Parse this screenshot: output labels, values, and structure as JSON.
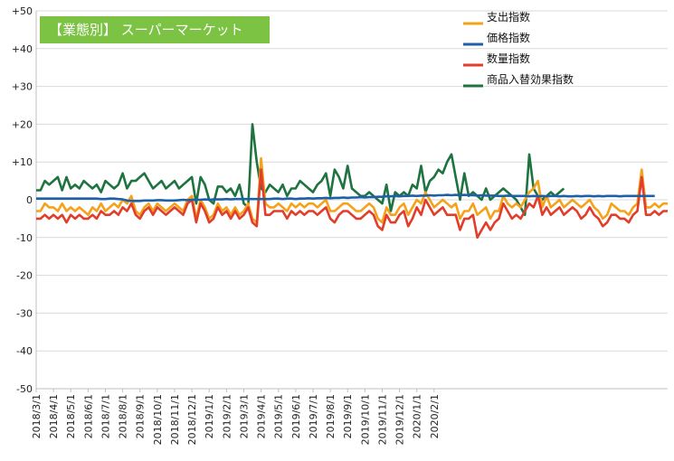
{
  "chart_data": {
    "type": "line",
    "title": "【業態別】 スーパーマーケット",
    "ylim": [
      -50,
      50
    ],
    "y_ticks": [
      "+50",
      "+40",
      "+30",
      "+20",
      "+10",
      "0",
      "-10",
      "-20",
      "-30",
      "-40",
      "-50"
    ],
    "x_tick_labels": [
      "2018/3/1",
      "2018/4/1",
      "2018/5/1",
      "2018/6/1",
      "2018/7/1",
      "2018/8/1",
      "2018/9/1",
      "2018/10/1",
      "2018/11/1",
      "2018/12/1",
      "2019/1/1",
      "2019/2/1",
      "2019/3/1",
      "2019/4/1",
      "2019/5/1",
      "2019/6/1",
      "2019/7/1",
      "2019/8/1",
      "2019/9/1",
      "2019/10/1",
      "2019/11/1",
      "2019/12/1",
      "2020/1/1",
      "2020/2/1"
    ],
    "points_per_month": 4,
    "legend_position": "top-right",
    "series": [
      {
        "name": "支出指数",
        "color": "#F5A21B",
        "values": [
          -3,
          -3,
          -1,
          -2,
          -2,
          -3,
          -1,
          -3,
          -2,
          -3,
          -2,
          -3,
          -4,
          -2,
          -3,
          -1,
          -3,
          -2,
          -1,
          -2,
          0,
          -1,
          1,
          -3,
          -4,
          -2,
          -1,
          -3,
          -1,
          -2,
          -3,
          -2,
          -1,
          -2,
          -3,
          0,
          1,
          -5,
          0,
          -2,
          -5,
          -4,
          -1,
          -3,
          -2,
          -4,
          -2,
          -4,
          -3,
          -1,
          -5,
          -6,
          11,
          -1,
          -2,
          -2,
          -1,
          -2,
          -3,
          -1,
          -2,
          -1,
          -2,
          -1,
          -1,
          -2,
          -1,
          0,
          -3,
          -3,
          -2,
          -1,
          -1,
          -2,
          -3,
          -3,
          -2,
          -1,
          -2,
          -5,
          -6,
          -2,
          -4,
          -4,
          -2,
          -1,
          -4,
          -2,
          0,
          -1,
          2,
          0,
          -2,
          -1,
          0,
          -1,
          -2,
          -1,
          -5,
          -3,
          -3,
          -1,
          -4,
          -3,
          -2,
          -5,
          -3,
          -3,
          1,
          -1,
          -2,
          -1,
          -2,
          0,
          2,
          3,
          5,
          -2,
          1,
          -2,
          -1,
          0,
          -2,
          -1,
          0,
          -1,
          -2,
          -1,
          0,
          -2,
          -3,
          -5,
          -4,
          -1,
          -2,
          -3,
          -3,
          -4,
          -2,
          -1,
          8,
          -2,
          -2,
          -1,
          -2,
          -1,
          -1
        ]
      },
      {
        "name": "価格指数",
        "color": "#1F5FA8",
        "values": [
          0.3,
          0.3,
          0.3,
          0.3,
          0.3,
          0.3,
          0.3,
          0.3,
          0.3,
          0.3,
          0.3,
          0.3,
          0.3,
          0.3,
          0.3,
          0.2,
          0.2,
          0.3,
          0.3,
          0.2,
          0.1,
          -0.2,
          -0.3,
          -0.3,
          -0.3,
          -0.2,
          -0.2,
          -0.2,
          -0.1,
          -0.1,
          -0.2,
          -0.2,
          -0.2,
          -0.1,
          0,
          -0.1,
          0,
          0,
          0,
          0.1,
          0,
          0.1,
          0.1,
          0.1,
          0.2,
          0.1,
          0.2,
          0.2,
          0.2,
          0.2,
          0.2,
          0.2,
          0.2,
          0.2,
          0.2,
          0.3,
          0.3,
          0.2,
          0.3,
          0.3,
          0.2,
          0.3,
          0.3,
          0.4,
          0.3,
          0.4,
          0.4,
          0.5,
          0.4,
          0.5,
          0.5,
          0.6,
          0.5,
          0.6,
          0.6,
          0.7,
          0.6,
          0.7,
          0.7,
          0.8,
          0.8,
          0.9,
          0.9,
          1.0,
          0.9,
          1.0,
          1.0,
          1.1,
          1.0,
          1.1,
          1.1,
          1.2,
          1.1,
          1.2,
          1.2,
          1.3,
          1.2,
          1.3,
          1.2,
          1.3,
          1.2,
          1.2,
          1.1,
          1.2,
          1.1,
          1.1,
          1.1,
          1.0,
          1.0,
          1.1,
          1.0,
          1.0,
          1.0,
          1.0,
          0.9,
          1.0,
          0.9,
          1.0,
          0.9,
          1.0,
          1.0,
          0.9,
          1.0,
          0.9,
          0.9,
          1.0,
          0.9,
          1.0,
          1.0,
          0.9,
          1.0,
          0.9,
          1.0,
          1.0,
          1.0,
          0.9,
          1.0,
          1.0,
          1.0,
          1.0,
          1.0,
          1.0,
          1.0,
          1.0
        ]
      },
      {
        "name": "数量指数",
        "color": "#E23D2A",
        "values": [
          -5,
          -5,
          -4,
          -5,
          -4,
          -5,
          -4,
          -6,
          -4,
          -5,
          -4,
          -5,
          -5,
          -4,
          -5,
          -3,
          -4,
          -4,
          -3,
          -4,
          -2,
          -3,
          -1,
          -4,
          -5,
          -3,
          -2,
          -4,
          -2,
          -3,
          -4,
          -3,
          -2,
          -3,
          -4,
          -1,
          0,
          -6,
          -1,
          -3,
          -6,
          -5,
          -2,
          -4,
          -3,
          -5,
          -3,
          -5,
          -4,
          -2,
          -6,
          -7,
          8,
          -4,
          -4,
          -3,
          -3,
          -3,
          -5,
          -3,
          -4,
          -3,
          -4,
          -3,
          -3,
          -4,
          -3,
          -2,
          -5,
          -6,
          -4,
          -3,
          -3,
          -4,
          -5,
          -5,
          -4,
          -3,
          -4,
          -7,
          -8,
          -4,
          -6,
          -6,
          -4,
          -3,
          -7,
          -5,
          -2,
          -4,
          0,
          -2,
          -4,
          -3,
          -2,
          -4,
          -4,
          -4,
          -8,
          -5,
          -5,
          -4,
          -10,
          -8,
          -6,
          -8,
          -6,
          -5,
          -1,
          -3,
          -5,
          -4,
          -5,
          -3,
          -1,
          -2,
          1,
          -4,
          -2,
          -4,
          -3,
          -2,
          -4,
          -3,
          -2,
          -3,
          -5,
          -4,
          -2,
          -4,
          -5,
          -7,
          -6,
          -4,
          -4,
          -5,
          -5,
          -6,
          -4,
          -3,
          6,
          -4,
          -4,
          -3,
          -4,
          -3,
          -3
        ]
      },
      {
        "name": "商品入替効果指数",
        "color": "#1E7340",
        "values": [
          2.5,
          2.5,
          5,
          4,
          5,
          6,
          2.5,
          6,
          3,
          4,
          3,
          5,
          4,
          3,
          4,
          2,
          5,
          4,
          3,
          4,
          7,
          3,
          5,
          5,
          6,
          7,
          5,
          3,
          4,
          5,
          3,
          4,
          5,
          3,
          4,
          5,
          6,
          -1,
          6,
          4,
          0,
          -1,
          3.5,
          3.5,
          2,
          3,
          1,
          4,
          -1,
          -2,
          20,
          10,
          3,
          2,
          4,
          3,
          2,
          4,
          1,
          3,
          3,
          5,
          4,
          3,
          2,
          4,
          5,
          7,
          1,
          8,
          6,
          3,
          9,
          3,
          2,
          1,
          1,
          2,
          1,
          0,
          -1,
          4,
          -3,
          2,
          1,
          2,
          1,
          4,
          3,
          9,
          2,
          5,
          6,
          8,
          7,
          10,
          12,
          6,
          0,
          7,
          1,
          2,
          1,
          0,
          3,
          0,
          1,
          2,
          3,
          2,
          1,
          0,
          -2,
          -4,
          12,
          3,
          1,
          0,
          1,
          2,
          1,
          2,
          3
        ]
      }
    ]
  }
}
